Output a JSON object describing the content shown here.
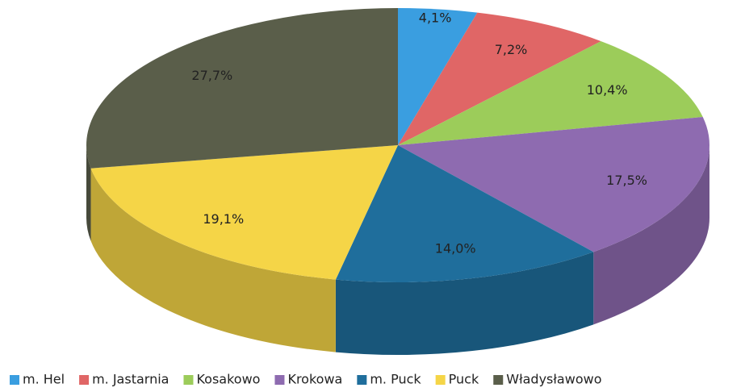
{
  "chart_data": {
    "type": "pie",
    "categories": [
      "m. Hel",
      "m. Jastarnia",
      "Kosakowo",
      "Krokowa",
      "m. Puck",
      "Puck",
      "Władysławowo"
    ],
    "values": [
      4.1,
      7.2,
      10.4,
      17.5,
      14.0,
      19.1,
      27.7
    ],
    "value_labels": [
      "4,1%",
      "7,2%",
      "10,4%",
      "17,5%",
      "14,0%",
      "19,1%",
      "27,7%"
    ],
    "colors": [
      "#3a9ee0",
      "#e06666",
      "#9ccc5a",
      "#8e6bb0",
      "#1f6e9c",
      "#f5d547",
      "#5a5e4a"
    ],
    "legend": "bottom"
  }
}
